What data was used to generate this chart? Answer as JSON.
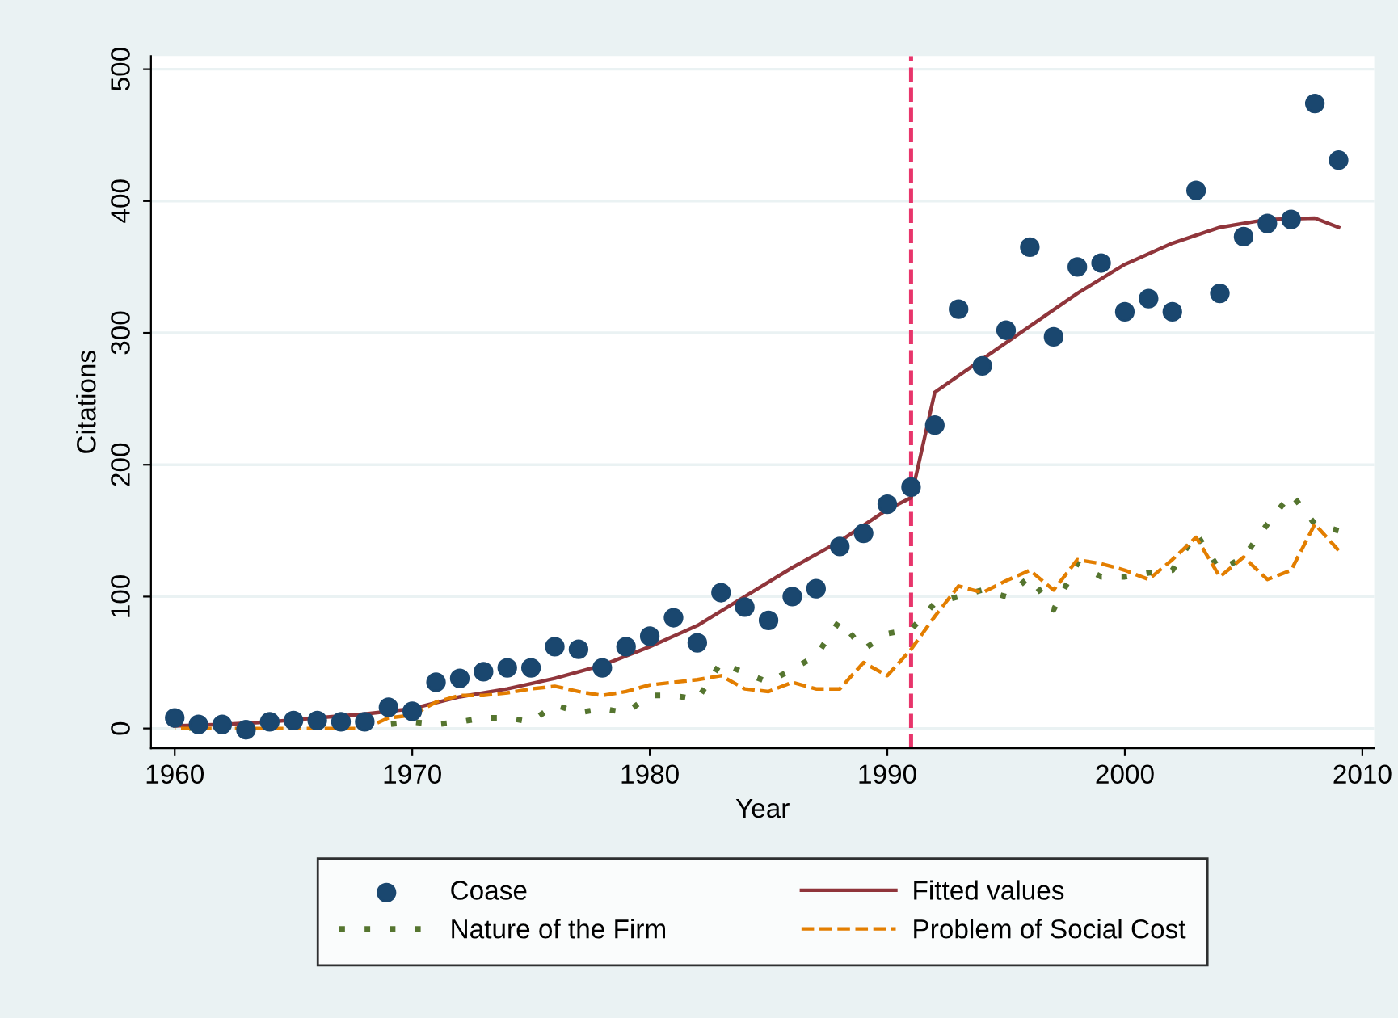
{
  "chart_data": {
    "type": "line",
    "xlabel": "Year",
    "ylabel": "Citations",
    "x": [
      1960,
      1961,
      1962,
      1963,
      1964,
      1965,
      1966,
      1967,
      1968,
      1969,
      1970,
      1971,
      1972,
      1973,
      1974,
      1975,
      1976,
      1977,
      1978,
      1979,
      1980,
      1981,
      1982,
      1983,
      1984,
      1985,
      1986,
      1987,
      1988,
      1989,
      1990,
      1991,
      1992,
      1993,
      1994,
      1995,
      1996,
      1997,
      1998,
      1999,
      2000,
      2001,
      2002,
      2003,
      2004,
      2005,
      2006,
      2007,
      2008,
      2009
    ],
    "series": [
      {
        "name": "Coase",
        "type": "scatter",
        "marker": "circle",
        "color": "#1a476f",
        "values": [
          8,
          3,
          3,
          -1,
          5,
          6,
          6,
          5,
          5,
          16,
          13,
          35,
          38,
          43,
          46,
          46,
          62,
          60,
          46,
          62,
          70,
          84,
          65,
          103,
          92,
          82,
          100,
          106,
          138,
          148,
          170,
          183,
          230,
          318,
          275,
          302,
          365,
          297,
          350,
          353,
          316,
          326,
          316,
          408,
          330,
          373,
          383,
          386,
          474,
          431
        ]
      },
      {
        "name": "Fitted values",
        "line_style": "solid",
        "color": "#90353b",
        "x": [
          1960,
          1962,
          1964,
          1966,
          1968,
          1970,
          1972,
          1974,
          1976,
          1978,
          1980,
          1982,
          1984,
          1986,
          1988,
          1990,
          1991,
          1992,
          1994,
          1996,
          1998,
          2000,
          2002,
          2004,
          2006,
          2008,
          2009
        ],
        "values": [
          2,
          3,
          5,
          8,
          11,
          15,
          24,
          30,
          38,
          48,
          62,
          78,
          100,
          122,
          142,
          166,
          175,
          255,
          280,
          305,
          330,
          352,
          368,
          380,
          386,
          387,
          380
        ]
      },
      {
        "name": "Nature of the Firm",
        "line_style": "dotted",
        "color": "#55752f",
        "values": [
          1,
          0,
          1,
          0,
          1,
          2,
          1,
          2,
          2,
          3,
          5,
          3,
          5,
          8,
          8,
          5,
          18,
          12,
          15,
          12,
          25,
          25,
          22,
          50,
          42,
          35,
          45,
          55,
          82,
          60,
          72,
          75,
          95,
          100,
          105,
          100,
          115,
          90,
          125,
          115,
          115,
          118,
          120,
          148,
          120,
          130,
          155,
          178,
          155,
          150
        ]
      },
      {
        "name": "Problem of Social Cost",
        "line_style": "dashed",
        "color": "#e37e00",
        "values": [
          0,
          0,
          0,
          0,
          0,
          0,
          0,
          0,
          0,
          8,
          10,
          20,
          25,
          25,
          27,
          30,
          32,
          28,
          25,
          28,
          33,
          35,
          37,
          40,
          30,
          28,
          35,
          30,
          30,
          50,
          40,
          60,
          85,
          108,
          103,
          112,
          120,
          105,
          128,
          125,
          120,
          113,
          128,
          145,
          115,
          130,
          113,
          120,
          155,
          135
        ]
      }
    ],
    "xlim": [
      1959,
      2010.5
    ],
    "ylim": [
      -15,
      510
    ],
    "xticks": [
      1960,
      1970,
      1980,
      1990,
      2000,
      2010
    ],
    "yticks": [
      0,
      100,
      200,
      300,
      400,
      500
    ],
    "ref_lines": [
      {
        "axis": "x",
        "value": 1991,
        "color": "#e8356b",
        "line_style": "dashed"
      }
    ],
    "grid": "y",
    "legend": "bottom"
  }
}
